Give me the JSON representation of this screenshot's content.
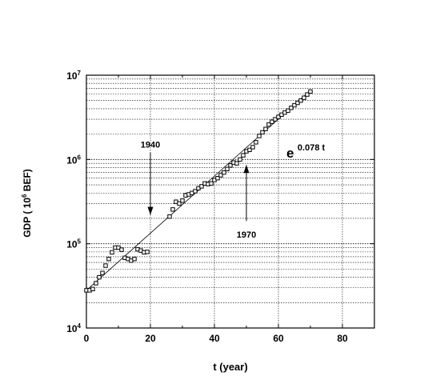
{
  "chart_data": {
    "type": "scatter",
    "xlabel": "t (year)",
    "ylabel": {
      "prefix": "GDP ( 10",
      "sup": "6",
      "suffix": " BEF)"
    },
    "xlim": [
      0,
      90
    ],
    "ylim": [
      10000,
      10000000
    ],
    "yscale": "log",
    "x_ticks": [
      0,
      20,
      40,
      60,
      80
    ],
    "x_tick_labels": [
      "0",
      "20",
      "40",
      "60",
      "80"
    ],
    "y_ticks": [
      10000,
      100000,
      1000000,
      10000000
    ],
    "y_tick_labels": [
      {
        "base": "10",
        "exp": "4"
      },
      {
        "base": "10",
        "exp": "5"
      },
      {
        "base": "10",
        "exp": "6"
      },
      {
        "base": "10",
        "exp": "7"
      }
    ],
    "grid": "vertical major lines and horizontal log gridlines, dotted",
    "fit_label": {
      "base": "e",
      "exp": "0.078 t"
    },
    "fit_line": {
      "x": [
        0,
        70
      ],
      "y": [
        28000,
        6600000
      ]
    },
    "annotations": [
      {
        "label": "1940",
        "x": 20,
        "arrow": "down",
        "arrow_tip_y": 220000
      },
      {
        "label": "1970",
        "x": 50,
        "arrow": "up",
        "arrow_tip_y": 860000
      }
    ],
    "series": [
      {
        "marker": "square",
        "x": [
          0,
          1,
          2,
          3,
          4,
          5,
          6,
          7,
          8,
          9,
          10,
          11,
          12,
          13,
          14,
          15,
          16,
          17,
          18,
          19,
          26,
          27,
          28,
          29,
          30,
          31,
          32,
          33,
          34,
          35,
          36,
          37,
          38,
          39,
          40,
          41,
          42,
          43,
          44,
          45,
          46,
          47,
          48,
          49,
          50,
          51,
          52,
          53,
          54,
          55,
          56,
          57,
          58,
          59,
          60,
          61,
          62,
          63,
          64,
          65,
          66,
          67,
          68,
          69,
          70
        ],
        "y": [
          28000,
          28000,
          29000,
          34000,
          40000,
          45000,
          55000,
          66000,
          79000,
          90000,
          90000,
          85000,
          68000,
          66000,
          63000,
          66000,
          86000,
          83000,
          79000,
          80000,
          210000,
          255000,
          315000,
          300000,
          325000,
          375000,
          385000,
          400000,
          420000,
          455000,
          480000,
          520000,
          510000,
          520000,
          570000,
          600000,
          650000,
          700000,
          770000,
          850000,
          920000,
          900000,
          1000000,
          1120000,
          1250000,
          1300000,
          1400000,
          1600000,
          1900000,
          2100000,
          2300000,
          2600000,
          2800000,
          3000000,
          3200000,
          3400000,
          3600000,
          3800000,
          4100000,
          4400000,
          4700000,
          5000000,
          5400000,
          5900000,
          6400000
        ]
      }
    ]
  }
}
